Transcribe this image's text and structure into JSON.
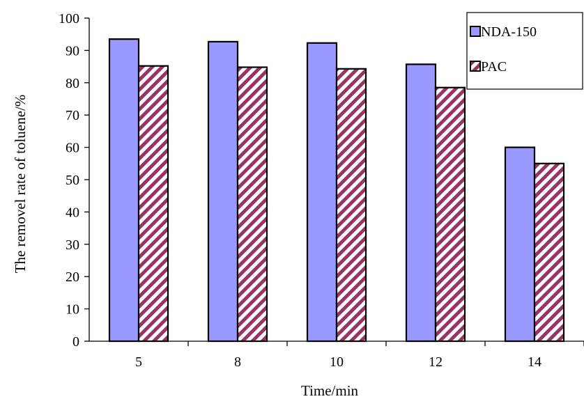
{
  "chart_data": {
    "type": "bar",
    "title": "",
    "xlabel": "Time/min",
    "ylabel": "The removel rate of toluene/%",
    "categories": [
      "5",
      "8",
      "10",
      "12",
      "14"
    ],
    "ylim": [
      0,
      100
    ],
    "yticks": [
      "0",
      "10",
      "20",
      "30",
      "40",
      "50",
      "60",
      "70",
      "80",
      "90",
      "100"
    ],
    "grid": false,
    "legend_position": "top-right",
    "series": [
      {
        "name": "NDA-150",
        "values": [
          93.5,
          92.7,
          92.3,
          85.7,
          60.0
        ],
        "color": "#9999ff",
        "pattern": "solid"
      },
      {
        "name": "PAC",
        "values": [
          85.2,
          84.8,
          84.3,
          78.5,
          55.0
        ],
        "color": "#993366",
        "pattern": "diagonal-hatch"
      }
    ]
  }
}
